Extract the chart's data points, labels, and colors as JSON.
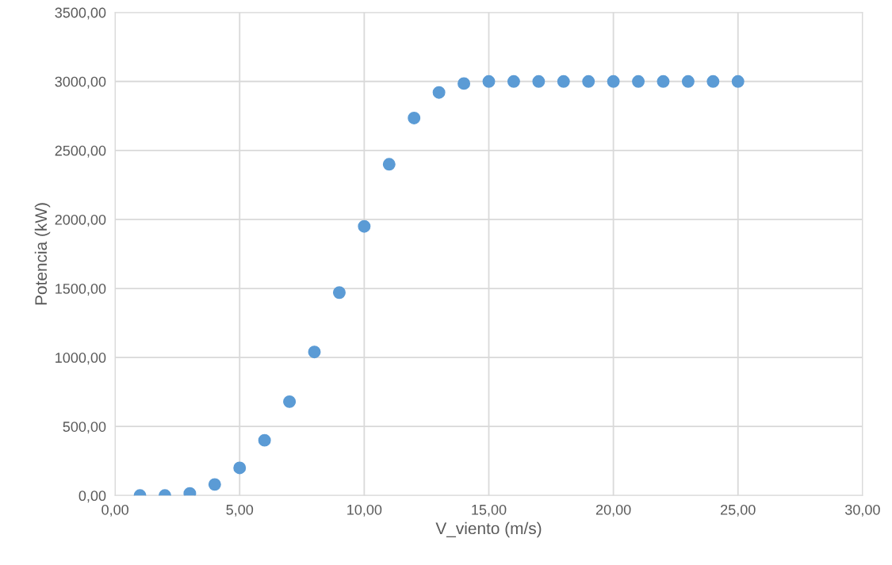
{
  "chart_data": {
    "type": "scatter",
    "xlabel": "V_viento (m/s)",
    "ylabel": "Potencia (kW)",
    "x": [
      1,
      2,
      3,
      4,
      5,
      6,
      7,
      8,
      9,
      10,
      11,
      12,
      13,
      14,
      15,
      16,
      17,
      18,
      19,
      20,
      21,
      22,
      23,
      24,
      25
    ],
    "series": [
      {
        "color": "#5b9bd5",
        "values": [
          0,
          0,
          15,
          80,
          200,
          400,
          680,
          1040,
          1470,
          1950,
          2400,
          2735,
          2920,
          2985,
          3000,
          3000,
          3000,
          3000,
          3000,
          3000,
          3000,
          3000,
          3000,
          3000,
          3000
        ]
      }
    ],
    "xlim": [
      0,
      30
    ],
    "ylim": [
      0,
      3500
    ],
    "xticks": [
      {
        "value": 0,
        "label": "0,00"
      },
      {
        "value": 5,
        "label": "5,00"
      },
      {
        "value": 10,
        "label": "10,00"
      },
      {
        "value": 15,
        "label": "15,00"
      },
      {
        "value": 20,
        "label": "20,00"
      },
      {
        "value": 25,
        "label": "25,00"
      },
      {
        "value": 30,
        "label": "30,00"
      }
    ],
    "yticks": [
      {
        "value": 0,
        "label": "0,00"
      },
      {
        "value": 500,
        "label": "500,00"
      },
      {
        "value": 1000,
        "label": "1000,00"
      },
      {
        "value": 1500,
        "label": "1500,00"
      },
      {
        "value": 2000,
        "label": "2000,00"
      },
      {
        "value": 2500,
        "label": "2500,00"
      },
      {
        "value": 3000,
        "label": "3000,00"
      },
      {
        "value": 3500,
        "label": "3500,00"
      }
    ],
    "grid": true,
    "marker": "circle"
  }
}
